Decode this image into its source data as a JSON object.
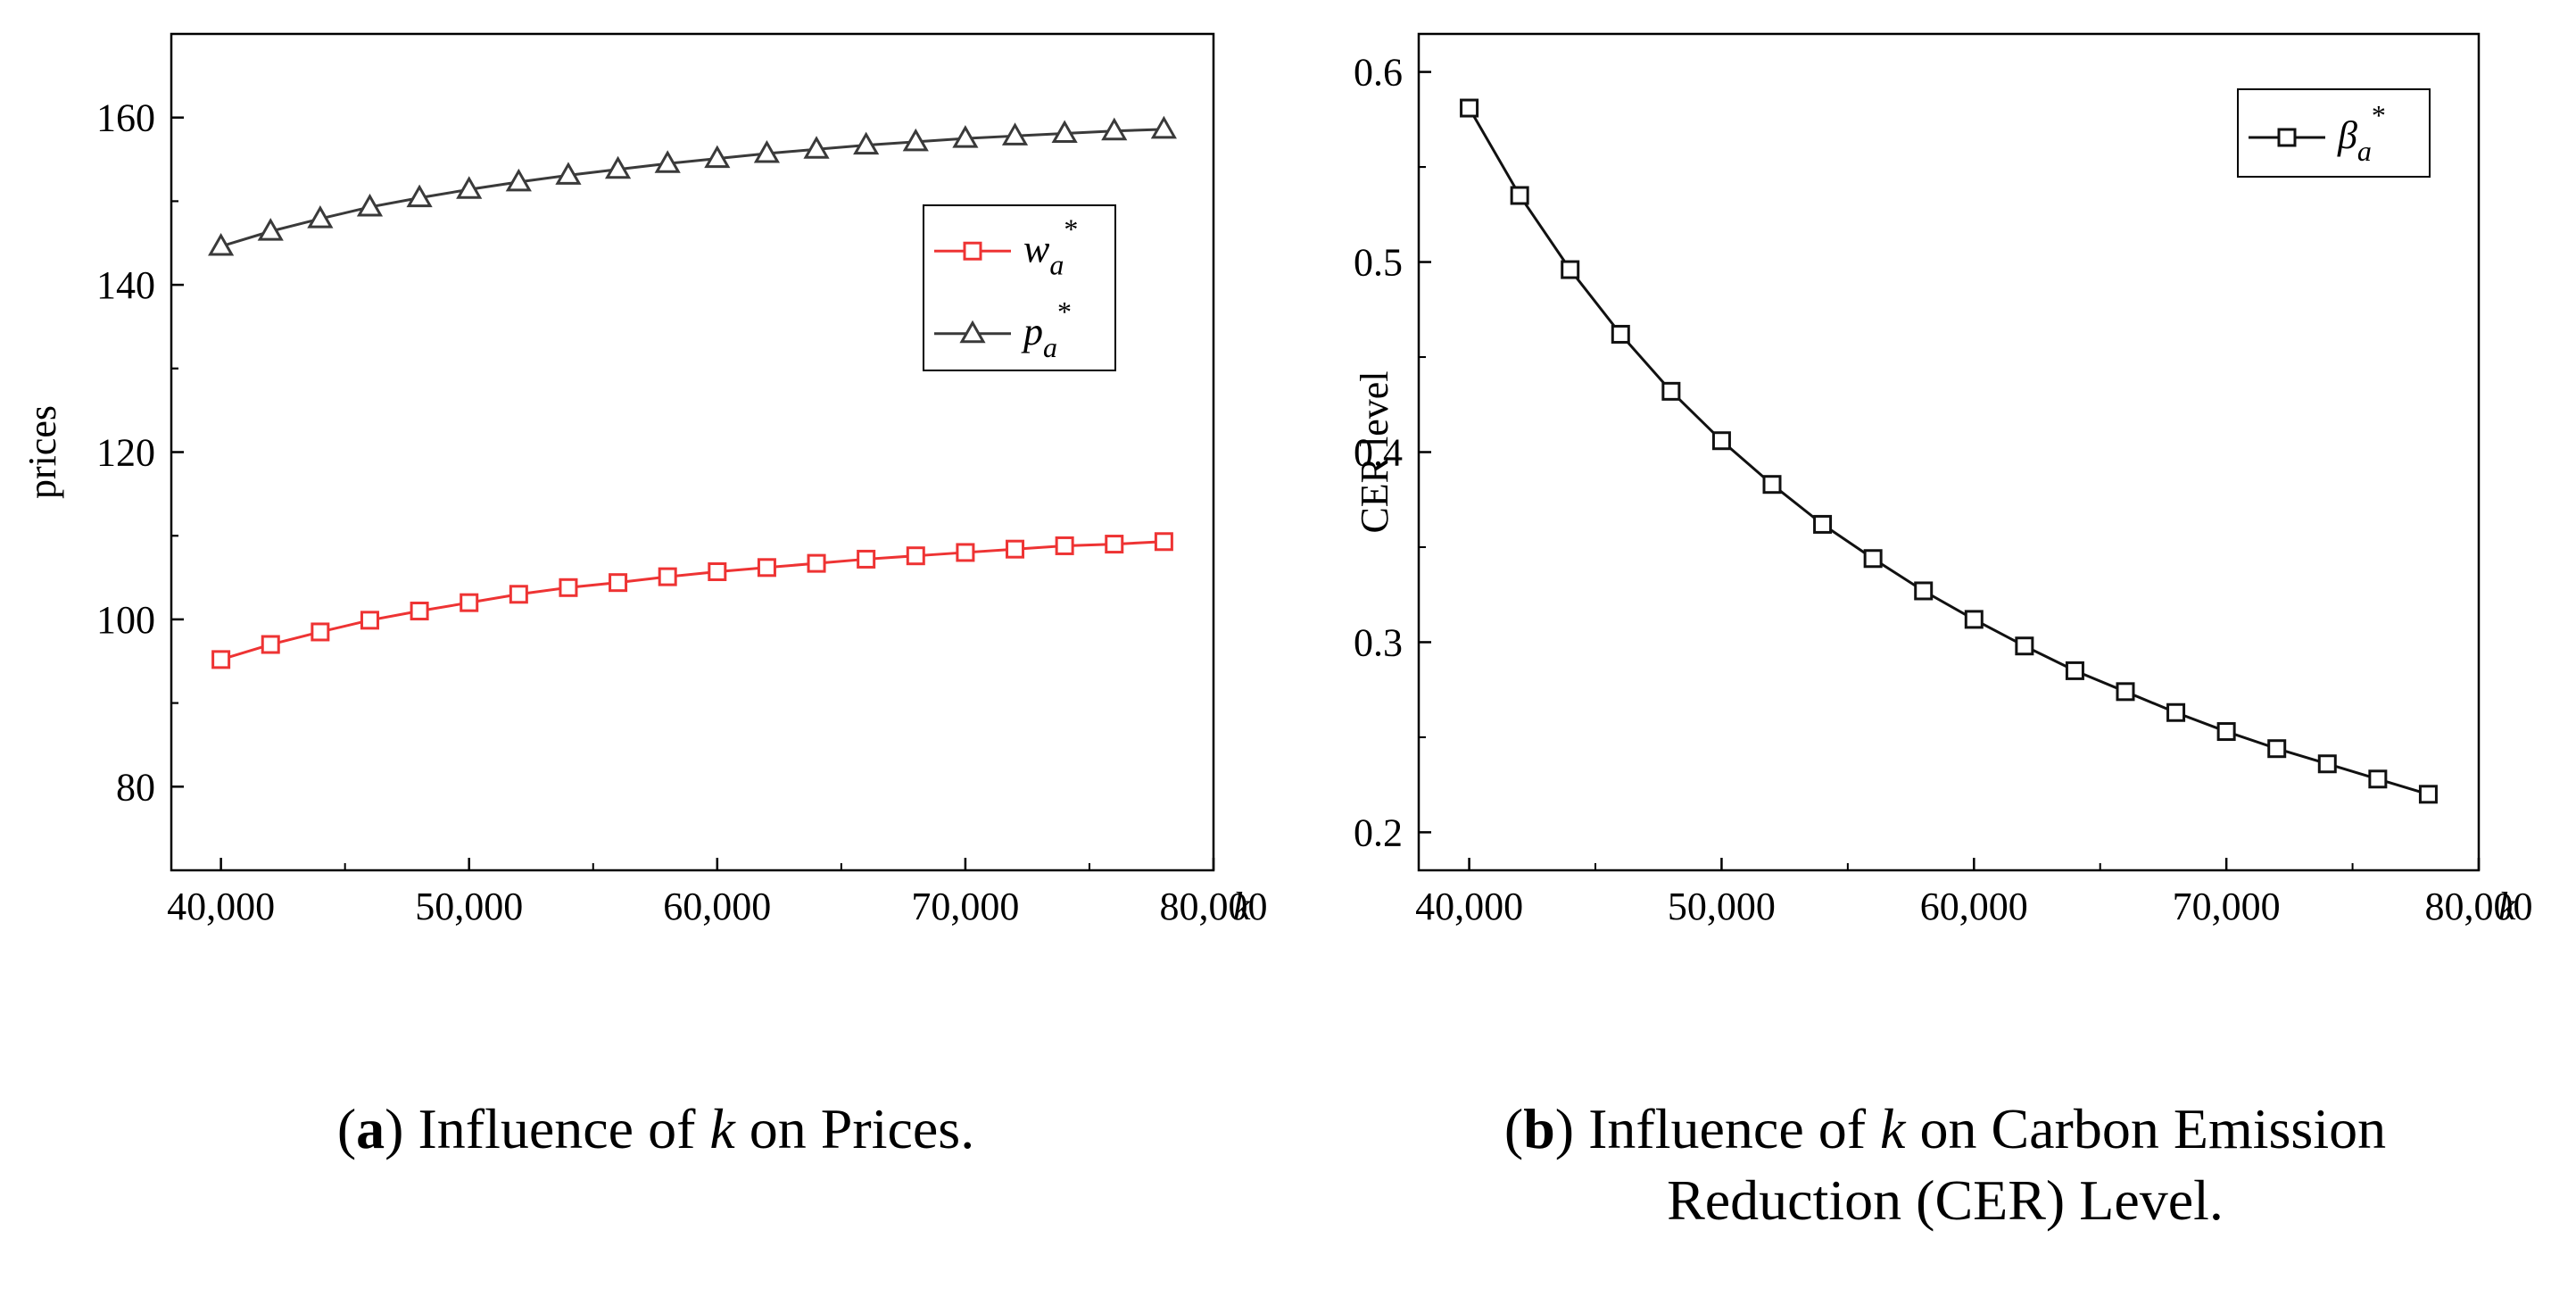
{
  "chart_data": [
    {
      "type": "line",
      "xlabel": "k",
      "ylabel": "prices",
      "xlim": [
        38000,
        80000
      ],
      "ylim": [
        70,
        170
      ],
      "xticks": [
        40000,
        50000,
        60000,
        70000,
        80000
      ],
      "xtick_labels": [
        "40,000",
        "50,000",
        "60,000",
        "70,000",
        "80,000"
      ],
      "yticks": [
        80,
        100,
        120,
        140,
        160
      ],
      "ytick_labels": [
        "80",
        "100",
        "120",
        "140",
        "160"
      ],
      "x": [
        40000,
        42000,
        44000,
        46000,
        48000,
        50000,
        52000,
        54000,
        56000,
        58000,
        60000,
        62000,
        64000,
        66000,
        68000,
        70000,
        72000,
        74000,
        76000,
        78000
      ],
      "series": [
        {
          "name": "w_a*",
          "legend_main": "w",
          "legend_sub": "a",
          "legend_sup": "*",
          "color": "#ee3333",
          "marker": "square",
          "values": [
            95.2,
            97.0,
            98.5,
            99.9,
            101.0,
            102.0,
            103.0,
            103.8,
            104.4,
            105.1,
            105.7,
            106.2,
            106.7,
            107.2,
            107.6,
            108.0,
            108.4,
            108.8,
            109.0,
            109.3
          ]
        },
        {
          "name": "p_a*",
          "legend_main": "p",
          "legend_sub": "a",
          "legend_sup": "*",
          "color": "#3a3a3a",
          "marker": "triangle",
          "values": [
            144.6,
            146.4,
            147.9,
            149.3,
            150.4,
            151.4,
            152.3,
            153.1,
            153.8,
            154.5,
            155.1,
            155.7,
            156.2,
            156.7,
            157.1,
            157.5,
            157.8,
            158.1,
            158.4,
            158.6
          ]
        }
      ],
      "legend_position": "right-middle"
    },
    {
      "type": "line",
      "xlabel": "k",
      "ylabel": "CER level",
      "xlim": [
        38000,
        80000
      ],
      "ylim": [
        0.18,
        0.62
      ],
      "xticks": [
        40000,
        50000,
        60000,
        70000,
        80000
      ],
      "xtick_labels": [
        "40,000",
        "50,000",
        "60,000",
        "70,000",
        "80,000"
      ],
      "yticks": [
        0.2,
        0.3,
        0.4,
        0.5,
        0.6
      ],
      "ytick_labels": [
        "0.2",
        "0.3",
        "0.4",
        "0.5",
        "0.6"
      ],
      "x": [
        40000,
        42000,
        44000,
        46000,
        48000,
        50000,
        52000,
        54000,
        56000,
        58000,
        60000,
        62000,
        64000,
        66000,
        68000,
        70000,
        72000,
        74000,
        76000,
        78000
      ],
      "series": [
        {
          "name": "β_a*",
          "legend_main": "β",
          "legend_sub": "a",
          "legend_sup": "*",
          "color": "#111111",
          "marker": "square",
          "values": [
            0.581,
            0.535,
            0.496,
            0.462,
            0.432,
            0.406,
            0.383,
            0.362,
            0.344,
            0.327,
            0.312,
            0.298,
            0.285,
            0.274,
            0.263,
            0.253,
            0.244,
            0.236,
            0.228,
            0.22
          ]
        }
      ],
      "legend_position": "top-right"
    }
  ],
  "captions": [
    {
      "label": "a",
      "pre": "Influence of ",
      "var": "k",
      "post": " on Prices."
    },
    {
      "label": "b",
      "pre": "Influence of ",
      "var": "k",
      "post": " on Carbon Emission",
      "line2": "Reduction (CER) Level."
    }
  ]
}
